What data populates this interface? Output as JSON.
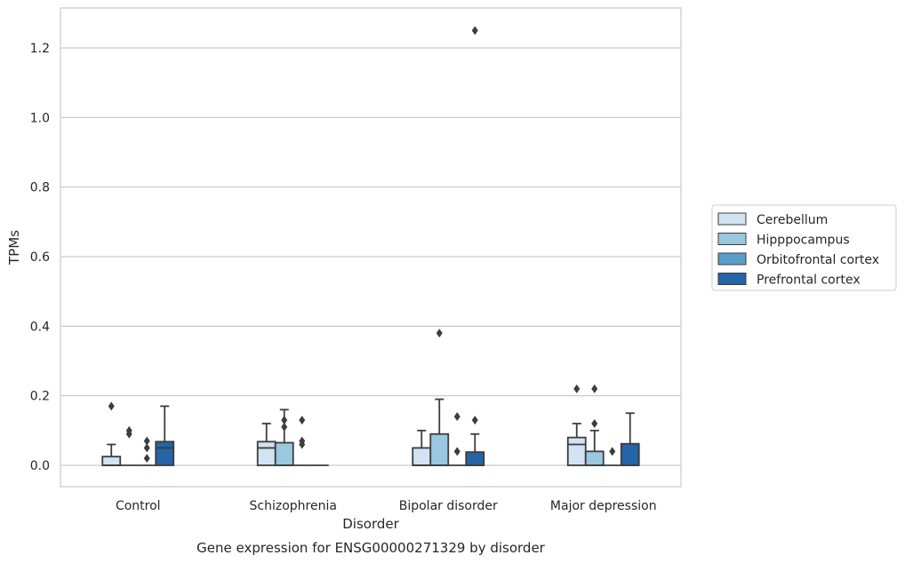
{
  "chart_data": {
    "type": "box",
    "title": "",
    "caption": "Gene expression for ENSG00000271329 by disorder",
    "xlabel": "Disorder",
    "ylabel": "TPMs",
    "ylim": [
      -0.06,
      1.32
    ],
    "yticks": [
      "0.0",
      "0.2",
      "0.4",
      "0.6",
      "0.8",
      "1.0",
      "1.2"
    ],
    "ytick_values": [
      0,
      0.2,
      0.4,
      0.6,
      0.8,
      1.0,
      1.2
    ],
    "grid": "horizontal",
    "legend_position": "right",
    "categories": [
      "Control",
      "Schizophrenia",
      "Bipolar disorder",
      "Major depression"
    ],
    "series": [
      {
        "name": "Cerebellum",
        "color": "#d2e3f3",
        "boxes": [
          {
            "q1": 0,
            "median": 0,
            "q3": 0.025,
            "whisker_low": 0,
            "whisker_high": 0.06,
            "outliers": [
              0.17
            ]
          },
          {
            "q1": 0,
            "median": 0.05,
            "q3": 0.068,
            "whisker_low": 0,
            "whisker_high": 0.12,
            "outliers": []
          },
          {
            "q1": 0,
            "median": 0,
            "q3": 0.05,
            "whisker_low": 0,
            "whisker_high": 0.1,
            "outliers": []
          },
          {
            "q1": 0,
            "median": 0.06,
            "q3": 0.08,
            "whisker_low": 0,
            "whisker_high": 0.12,
            "outliers": [
              0.22
            ]
          }
        ]
      },
      {
        "name": "Hipppocampus",
        "color": "#9ac8e0",
        "boxes": [
          {
            "q1": 0,
            "median": 0,
            "q3": 0,
            "whisker_low": 0,
            "whisker_high": 0,
            "outliers": [
              0.09,
              0.1
            ]
          },
          {
            "q1": 0,
            "median": 0,
            "q3": 0.065,
            "whisker_low": 0,
            "whisker_high": 0.16,
            "outliers": [
              0.11,
              0.13
            ]
          },
          {
            "q1": 0,
            "median": 0,
            "q3": 0.09,
            "whisker_low": 0,
            "whisker_high": 0.19,
            "outliers": [
              0.38
            ]
          },
          {
            "q1": 0,
            "median": 0,
            "q3": 0.04,
            "whisker_low": 0,
            "whisker_high": 0.1,
            "outliers": [
              0.12,
              0.22
            ]
          }
        ]
      },
      {
        "name": "Orbitofrontal cortex",
        "color": "#5a9ec9",
        "boxes": [
          {
            "q1": 0,
            "median": 0,
            "q3": 0,
            "whisker_low": 0,
            "whisker_high": 0,
            "outliers": [
              0.02,
              0.05,
              0.07
            ]
          },
          {
            "q1": 0,
            "median": 0,
            "q3": 0,
            "whisker_low": 0,
            "whisker_high": 0,
            "outliers": [
              0.06,
              0.07,
              0.13
            ]
          },
          {
            "q1": 0,
            "median": 0,
            "q3": 0,
            "whisker_low": 0,
            "whisker_high": 0,
            "outliers": [
              0.04,
              0.14
            ]
          },
          {
            "q1": 0,
            "median": 0,
            "q3": 0,
            "whisker_low": 0,
            "whisker_high": 0,
            "outliers": [
              0.04
            ]
          }
        ]
      },
      {
        "name": "Prefrontal cortex",
        "color": "#2464a8",
        "boxes": [
          {
            "q1": 0,
            "median": 0.05,
            "q3": 0.068,
            "whisker_low": 0,
            "whisker_high": 0.17,
            "outliers": []
          },
          {
            "q1": 0,
            "median": 0,
            "q3": 0,
            "whisker_low": 0,
            "whisker_high": 0,
            "outliers": []
          },
          {
            "q1": 0,
            "median": 0,
            "q3": 0.038,
            "whisker_low": 0,
            "whisker_high": 0.09,
            "outliers": [
              0.13,
              1.25
            ]
          },
          {
            "q1": 0,
            "median": 0,
            "q3": 0.062,
            "whisker_low": 0,
            "whisker_high": 0.15,
            "outliers": []
          }
        ]
      }
    ]
  }
}
